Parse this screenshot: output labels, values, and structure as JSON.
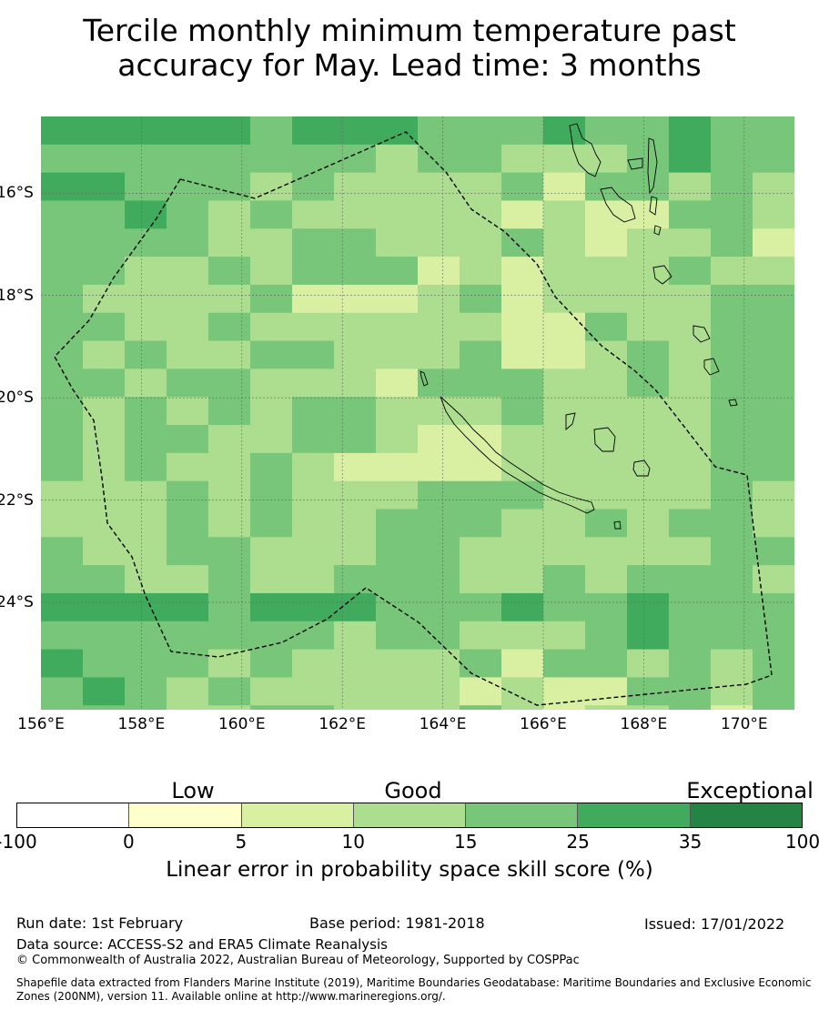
{
  "title": {
    "line1": "Tercile monthly minimum temperature past",
    "line2": "accuracy for May. Lead time: 3 months"
  },
  "map": {
    "lon_range": [
      156,
      171
    ],
    "lat_range": [
      -26.1,
      -14.5
    ],
    "lon_ticks": [
      "156°E",
      "158°E",
      "160°E",
      "162°E",
      "164°E",
      "166°E",
      "168°E",
      "170°E"
    ],
    "lat_ticks": [
      "16°S",
      "18°S",
      "20°S",
      "22°S",
      "24°S"
    ],
    "grid": true,
    "eez_boundary": "dashed",
    "land": "outlined"
  },
  "legend": {
    "categories": [
      "Low",
      "Good",
      "Exceptional"
    ],
    "tick_labels": [
      "-100",
      "0",
      "5",
      "10",
      "15",
      "25",
      "35",
      "100"
    ],
    "colors": [
      "#ffffff",
      "#ffffcc",
      "#d9f0a3",
      "#addd8e",
      "#78c679",
      "#41ab5d",
      "#238443"
    ],
    "title": "Linear error in probability space skill score (%)"
  },
  "footer": {
    "run_date": "Run date: 1st February",
    "base_period": "Base period: 1981-2018",
    "issued": "Issued: 17/01/2022",
    "data_source": "Data source: ACCESS-S2 and ERA5 Climate Reanalysis",
    "copyright": "© Commonwealth of Australia 2022, Australian Bureau of Meteorology, Supported by COSPPac",
    "shapefile": "Shapefile data extracted from Flanders Marine Institute (2019), Maritime Boundaries Geodatabase: Maritime Boundaries and Exclusive Economic Zones (200NM), version 11. Available online at http://www.marineregions.org/."
  }
}
